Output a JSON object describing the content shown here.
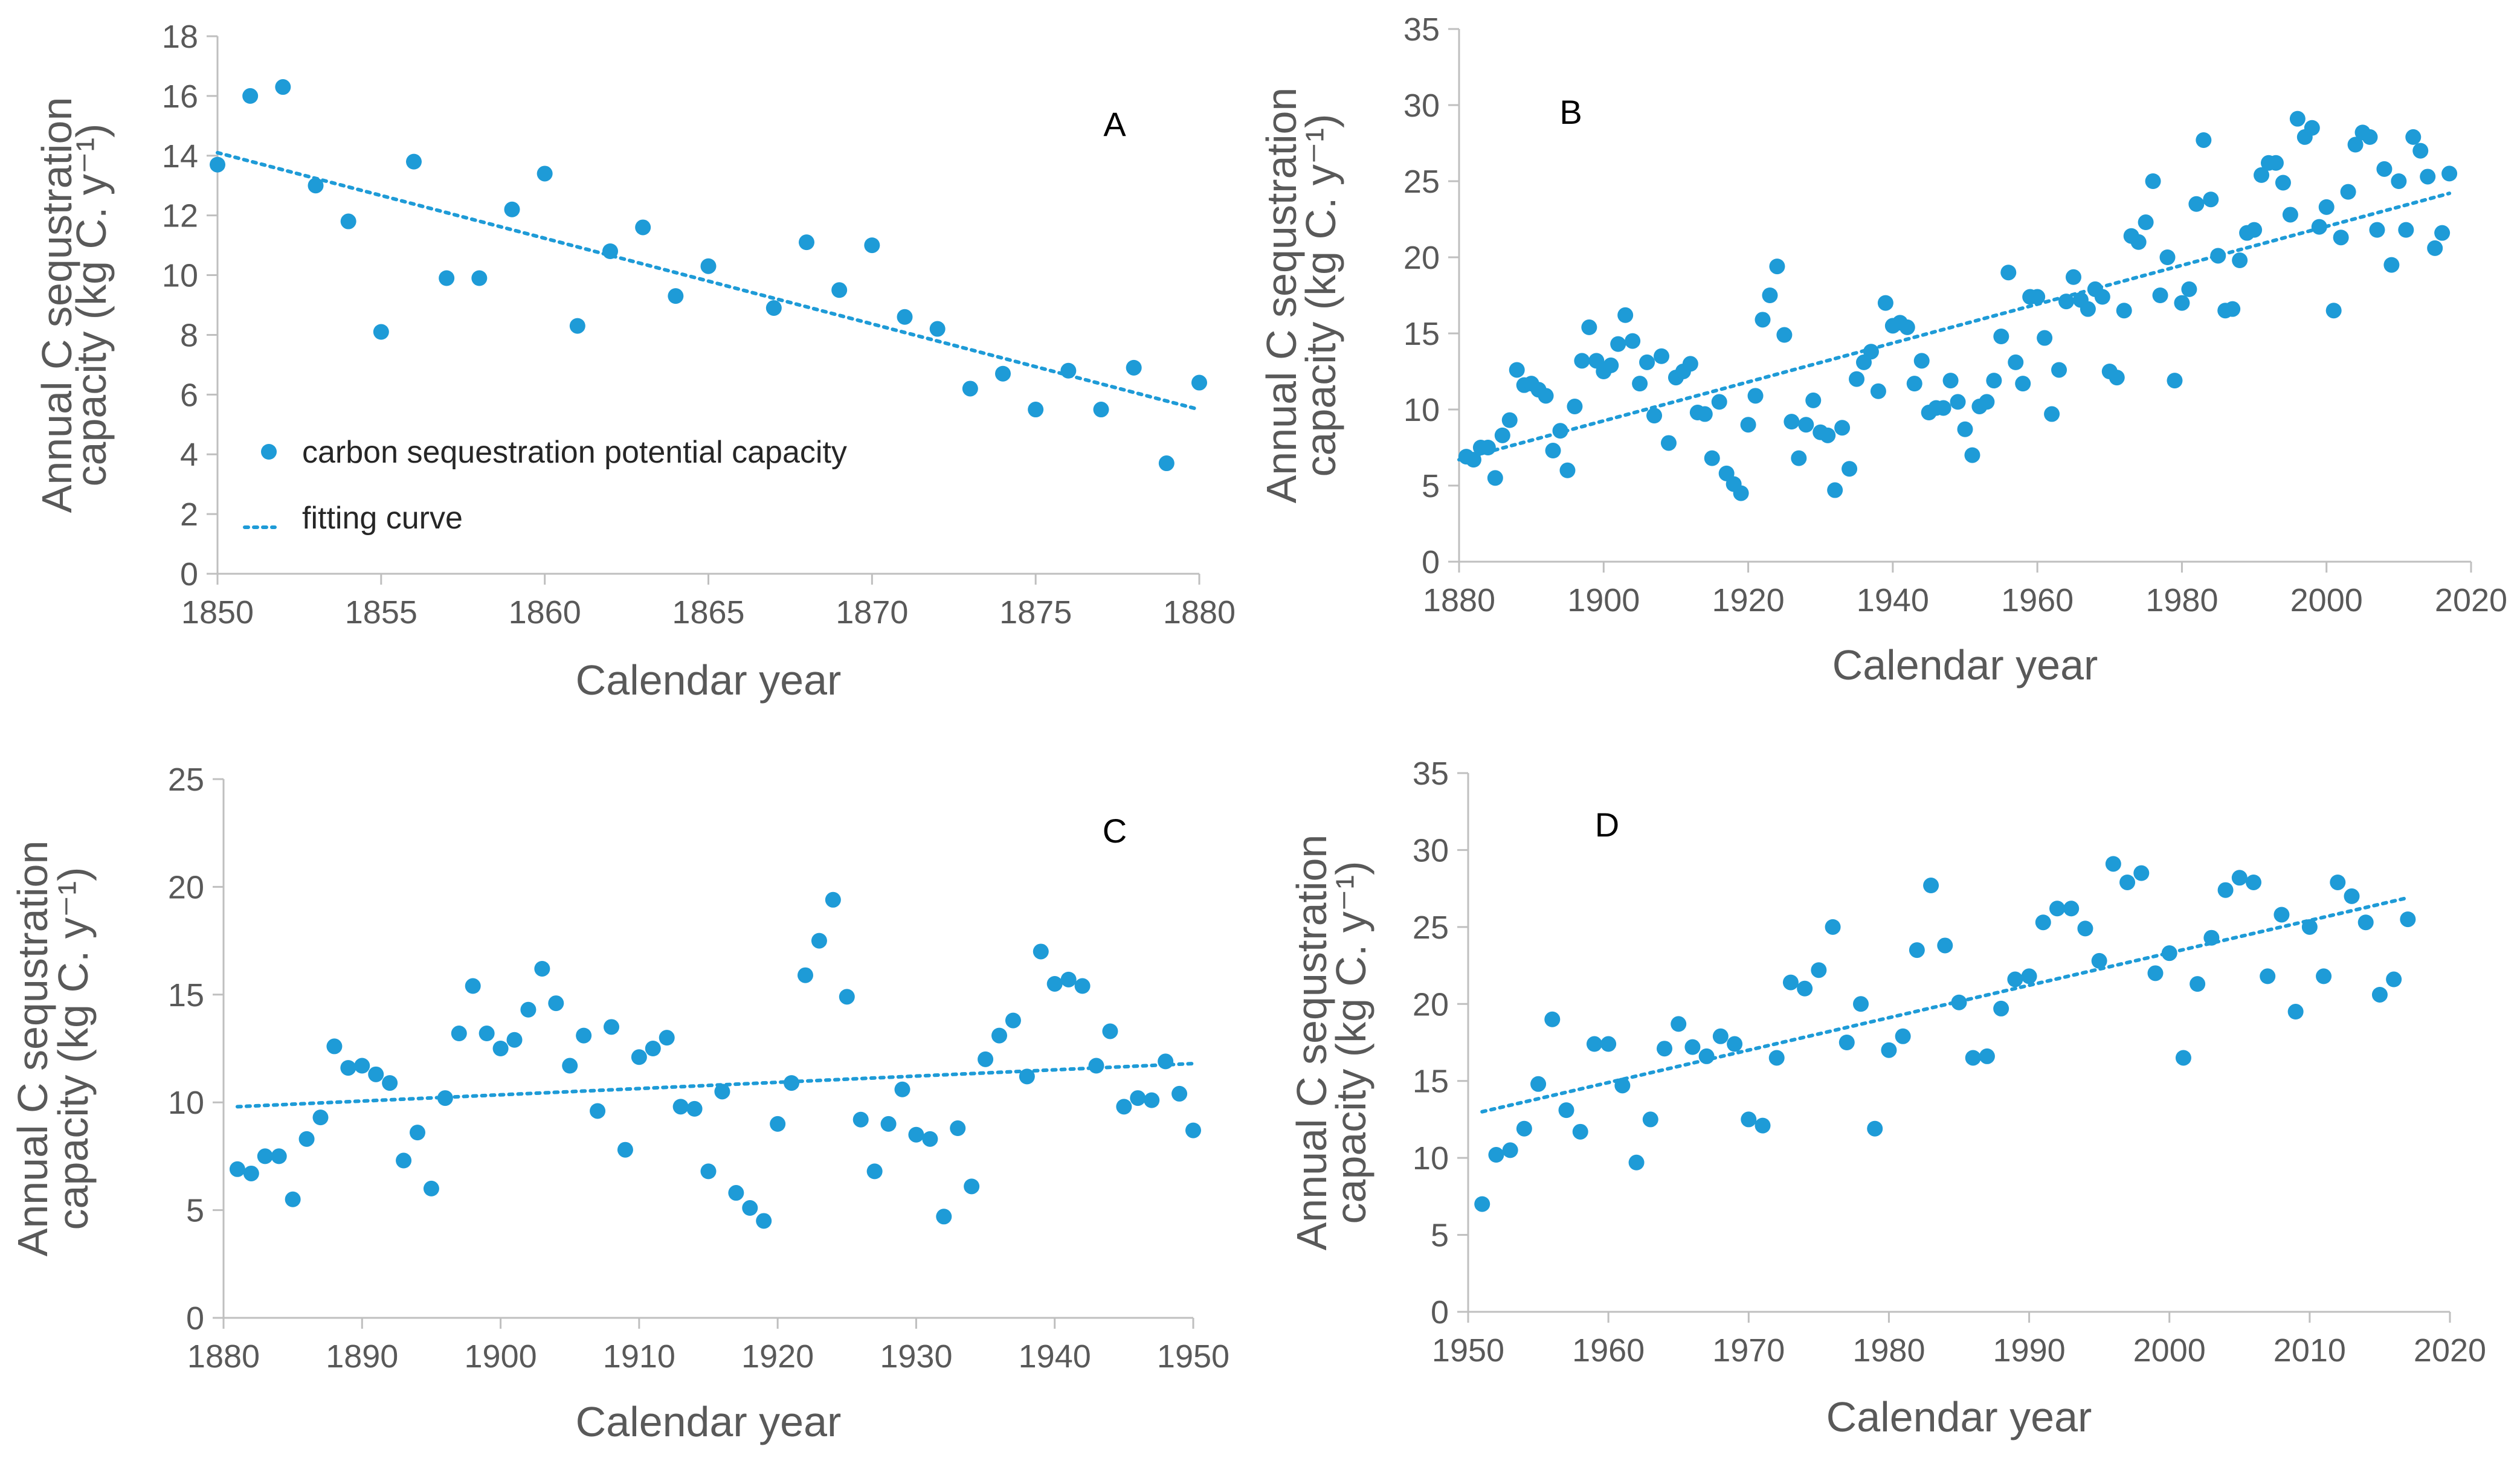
{
  "style": {
    "point_color": "#1E9BD7",
    "trend_color": "#1E9BD7",
    "axis_color": "#BFBFBF",
    "text_color": "#595959"
  },
  "chart_data": [
    {
      "panel": "A",
      "type": "scatter",
      "xlabel": "Calendar year",
      "ylabel_line1": "Annual C sequstration",
      "ylabel_line2": "capacity (kg C. y⁻¹)",
      "xlim": [
        1850,
        1880
      ],
      "ylim": [
        0,
        18
      ],
      "xticks": [
        1850,
        1855,
        1860,
        1865,
        1870,
        1875,
        1880
      ],
      "yticks": [
        0,
        2,
        4,
        6,
        8,
        10,
        12,
        14,
        16,
        18
      ],
      "legend": {
        "position": "middle-left",
        "series_label": "carbon sequestration potential capacity",
        "trend_label": "fitting curve"
      },
      "trend": {
        "x": [
          1850,
          1880
        ],
        "y": [
          14.1,
          5.5
        ]
      },
      "x": [
        1850,
        1851,
        1852,
        1853,
        1854,
        1855,
        1856,
        1857,
        1858,
        1859,
        1860,
        1861,
        1862,
        1863,
        1864,
        1865,
        1867,
        1868,
        1869,
        1870,
        1871,
        1872,
        1873,
        1874,
        1875,
        1876,
        1877,
        1878,
        1879,
        1880
      ],
      "y": [
        13.7,
        16.0,
        16.3,
        13.0,
        11.8,
        8.1,
        13.8,
        9.9,
        9.9,
        12.2,
        13.4,
        8.3,
        10.8,
        11.6,
        9.3,
        10.3,
        8.9,
        11.1,
        9.5,
        11.0,
        8.6,
        8.2,
        6.2,
        6.7,
        5.5,
        6.8,
        5.5,
        6.9,
        3.7,
        6.4
      ]
    },
    {
      "panel": "B",
      "type": "scatter",
      "xlabel": "Calendar year",
      "ylabel_line1": "Annual C sequstration",
      "ylabel_line2": "capacity (kg C. y⁻¹)",
      "xlim": [
        1880,
        2020
      ],
      "ylim": [
        0,
        35
      ],
      "xticks": [
        1880,
        1900,
        1920,
        1940,
        1960,
        1980,
        2000,
        2020
      ],
      "yticks": [
        0,
        5,
        10,
        15,
        20,
        25,
        30,
        35
      ],
      "trend": {
        "x": [
          1880,
          2017
        ],
        "y": [
          6.7,
          24.2
        ]
      },
      "x": [
        1881,
        1882,
        1883,
        1884,
        1885,
        1886,
        1887,
        1888,
        1889,
        1890,
        1891,
        1892,
        1893,
        1894,
        1895,
        1896,
        1897,
        1898,
        1899,
        1900,
        1901,
        1902,
        1903,
        1904,
        1905,
        1906,
        1907,
        1908,
        1909,
        1910,
        1911,
        1912,
        1913,
        1914,
        1915,
        1916,
        1917,
        1918,
        1919,
        1920,
        1921,
        1922,
        1923,
        1924,
        1925,
        1926,
        1927,
        1928,
        1929,
        1930,
        1931,
        1932,
        1933,
        1934,
        1935,
        1936,
        1937,
        1938,
        1939,
        1940,
        1941,
        1942,
        1943,
        1944,
        1945,
        1946,
        1947,
        1948,
        1949,
        1950,
        1951,
        1952,
        1953,
        1954,
        1955,
        1956,
        1957,
        1958,
        1959,
        1960,
        1961,
        1962,
        1963,
        1964,
        1965,
        1966,
        1967,
        1968,
        1969,
        1970,
        1971,
        1972,
        1973,
        1974,
        1975,
        1976,
        1977,
        1978,
        1979,
        1980,
        1981,
        1982,
        1983,
        1984,
        1985,
        1986,
        1987,
        1988,
        1989,
        1990,
        1991,
        1992,
        1993,
        1994,
        1995,
        1996,
        1997,
        1998,
        1999,
        2000,
        2001,
        2002,
        2003,
        2004,
        2005,
        2006,
        2007,
        2008,
        2009,
        2010,
        2011,
        2012,
        2013,
        2014,
        2015,
        2016,
        2017
      ],
      "y": [
        6.9,
        6.7,
        7.5,
        7.5,
        5.5,
        8.3,
        9.3,
        12.6,
        11.6,
        11.7,
        11.3,
        10.9,
        7.3,
        8.6,
        6.0,
        10.2,
        13.2,
        15.4,
        13.2,
        12.5,
        12.9,
        14.3,
        16.2,
        14.5,
        11.7,
        13.1,
        9.6,
        13.5,
        7.8,
        12.1,
        12.5,
        13.0,
        9.8,
        9.7,
        6.8,
        10.5,
        5.8,
        5.1,
        4.5,
        9.0,
        10.9,
        15.9,
        17.5,
        19.4,
        14.9,
        9.2,
        6.8,
        9.0,
        10.6,
        8.5,
        8.3,
        4.7,
        8.8,
        6.1,
        12.0,
        13.1,
        13.8,
        11.2,
        17.0,
        15.5,
        15.7,
        15.4,
        11.7,
        13.2,
        9.8,
        10.1,
        10.1,
        11.9,
        10.5,
        8.7,
        7.0,
        10.2,
        10.5,
        11.9,
        14.8,
        19.0,
        13.1,
        11.7,
        17.4,
        17.4,
        14.7,
        9.7,
        12.6,
        17.1,
        18.7,
        17.2,
        16.6,
        17.9,
        17.4,
        12.5,
        12.1,
        16.5,
        21.4,
        21.0,
        22.3,
        25.0,
        17.5,
        20.0,
        11.9,
        17.0,
        17.9,
        23.5,
        27.7,
        23.8,
        20.1,
        16.5,
        16.6,
        19.8,
        21.6,
        21.8,
        25.4,
        26.2,
        26.2,
        24.9,
        22.8,
        29.1,
        27.9,
        28.5,
        22.0,
        23.3,
        16.5,
        21.3,
        24.3,
        27.4,
        28.2,
        27.9,
        21.8,
        25.8,
        19.5,
        25.0,
        21.8,
        27.9,
        27.0,
        25.3,
        20.6,
        21.6,
        25.5
      ]
    },
    {
      "panel": "C",
      "type": "scatter",
      "xlabel": "Calendar year",
      "ylabel_line1": "Annual C sequstration",
      "ylabel_line2": "capacity (kg C. y⁻¹)",
      "xlim": [
        1880,
        1950
      ],
      "ylim": [
        0,
        25
      ],
      "xticks": [
        1880,
        1890,
        1900,
        1910,
        1920,
        1930,
        1940,
        1950
      ],
      "yticks": [
        0,
        5,
        10,
        15,
        20,
        25
      ],
      "trend": {
        "x": [
          1881,
          1950
        ],
        "y": [
          9.8,
          11.8
        ]
      },
      "x": [
        1881,
        1882,
        1883,
        1884,
        1885,
        1886,
        1887,
        1888,
        1889,
        1890,
        1891,
        1892,
        1893,
        1894,
        1895,
        1896,
        1897,
        1898,
        1899,
        1900,
        1901,
        1902,
        1903,
        1904,
        1905,
        1906,
        1907,
        1908,
        1909,
        1910,
        1911,
        1912,
        1913,
        1914,
        1915,
        1916,
        1917,
        1918,
        1919,
        1920,
        1921,
        1922,
        1923,
        1924,
        1925,
        1926,
        1927,
        1928,
        1929,
        1930,
        1931,
        1932,
        1933,
        1934,
        1935,
        1936,
        1937,
        1938,
        1939,
        1940,
        1941,
        1942,
        1943,
        1944,
        1945,
        1946,
        1947,
        1948,
        1949,
        1950
      ],
      "y": [
        6.9,
        6.7,
        7.5,
        7.5,
        5.5,
        8.3,
        9.3,
        12.6,
        11.6,
        11.7,
        11.3,
        10.9,
        7.3,
        8.6,
        6.0,
        10.2,
        13.2,
        15.4,
        13.2,
        12.5,
        12.9,
        14.3,
        16.2,
        14.6,
        11.7,
        13.1,
        9.6,
        13.5,
        7.8,
        12.1,
        12.5,
        13.0,
        9.8,
        9.7,
        6.8,
        10.5,
        5.8,
        5.1,
        4.5,
        9.0,
        10.9,
        15.9,
        17.5,
        19.4,
        14.9,
        9.2,
        6.8,
        9.0,
        10.6,
        8.5,
        8.3,
        4.7,
        8.8,
        6.1,
        12.0,
        13.1,
        13.8,
        11.2,
        17.0,
        15.5,
        15.7,
        15.4,
        11.7,
        13.3,
        9.8,
        10.2,
        10.1,
        11.9,
        10.4,
        8.7
      ]
    },
    {
      "panel": "D",
      "type": "scatter",
      "xlabel": "Calendar year",
      "ylabel_line1": "Annual C sequstration",
      "ylabel_line2": "capacity (kg C. y⁻¹)",
      "xlim": [
        1950,
        2020
      ],
      "ylim": [
        0,
        35
      ],
      "xticks": [
        1950,
        1960,
        1970,
        1980,
        1990,
        2000,
        2010,
        2020
      ],
      "yticks": [
        0,
        5,
        10,
        15,
        20,
        25,
        30,
        35
      ],
      "trend": {
        "x": [
          1951,
          2017
        ],
        "y": [
          13.0,
          26.9
        ]
      },
      "x": [
        1951,
        1952,
        1953,
        1954,
        1955,
        1956,
        1957,
        1958,
        1959,
        1960,
        1961,
        1962,
        1963,
        1964,
        1965,
        1966,
        1967,
        1968,
        1969,
        1970,
        1971,
        1972,
        1973,
        1974,
        1975,
        1976,
        1977,
        1978,
        1979,
        1980,
        1981,
        1982,
        1983,
        1984,
        1985,
        1986,
        1987,
        1988,
        1989,
        1990,
        1991,
        1992,
        1993,
        1994,
        1995,
        1996,
        1997,
        1998,
        1999,
        2000,
        2001,
        2002,
        2003,
        2004,
        2005,
        2006,
        2007,
        2008,
        2009,
        2010,
        2011,
        2012,
        2013,
        2014,
        2015,
        2016,
        2017
      ],
      "y": [
        7.0,
        10.2,
        10.5,
        11.9,
        14.8,
        19.0,
        13.1,
        11.7,
        17.4,
        17.4,
        14.7,
        9.7,
        12.5,
        17.1,
        18.7,
        17.2,
        16.6,
        17.9,
        17.4,
        12.5,
        12.1,
        16.5,
        21.4,
        21.0,
        22.2,
        25.0,
        17.5,
        20.0,
        11.9,
        17.0,
        17.9,
        23.5,
        27.7,
        23.8,
        20.1,
        16.5,
        16.6,
        19.7,
        21.6,
        21.8,
        25.3,
        26.2,
        26.2,
        24.9,
        22.8,
        29.1,
        27.9,
        28.5,
        22.0,
        23.3,
        16.5,
        21.3,
        24.3,
        27.4,
        28.2,
        27.9,
        21.8,
        25.8,
        19.5,
        25.0,
        21.8,
        27.9,
        27.0,
        25.3,
        20.6,
        21.6,
        25.5
      ]
    }
  ]
}
